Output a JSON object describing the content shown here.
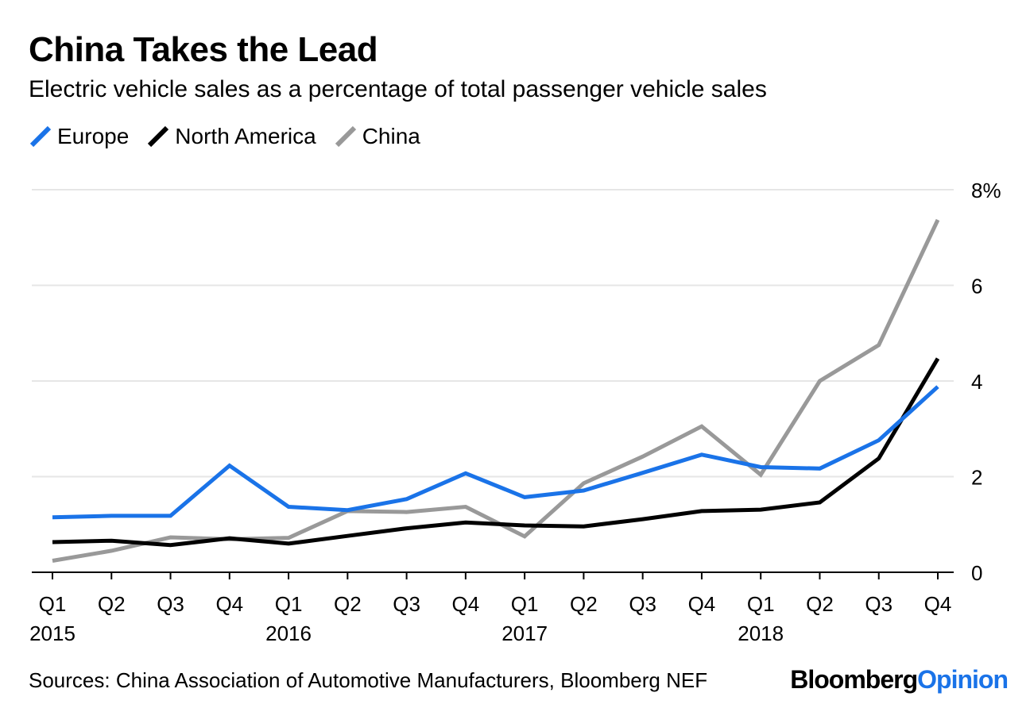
{
  "chart_data": {
    "type": "line",
    "title": "China Takes the Lead",
    "subtitle": "Electric vehicle sales as a percentage of total passenger vehicle sales",
    "categories": [
      "Q1",
      "Q2",
      "Q3",
      "Q4",
      "Q1",
      "Q2",
      "Q3",
      "Q4",
      "Q1",
      "Q2",
      "Q3",
      "Q4",
      "Q1",
      "Q2",
      "Q3",
      "Q4"
    ],
    "year_labels": [
      {
        "index": 0,
        "label": "2015"
      },
      {
        "index": 4,
        "label": "2016"
      },
      {
        "index": 8,
        "label": "2017"
      },
      {
        "index": 12,
        "label": "2018"
      }
    ],
    "ylim": [
      0,
      8
    ],
    "yticks": [
      {
        "value": 0,
        "label": "0"
      },
      {
        "value": 2,
        "label": "2"
      },
      {
        "value": 4,
        "label": "4"
      },
      {
        "value": 6,
        "label": "6"
      },
      {
        "value": 8,
        "label": "8%"
      }
    ],
    "series": [
      {
        "name": "Europe",
        "color": "#1a73e8",
        "values": [
          1.15,
          1.18,
          1.18,
          2.23,
          1.37,
          1.3,
          1.53,
          2.07,
          1.57,
          1.71,
          2.08,
          2.46,
          2.2,
          2.17,
          2.76,
          3.88
        ]
      },
      {
        "name": "North America",
        "color": "#000000",
        "values": [
          0.63,
          0.66,
          0.57,
          0.71,
          0.6,
          0.76,
          0.92,
          1.04,
          0.98,
          0.96,
          1.11,
          1.28,
          1.31,
          1.46,
          2.38,
          4.47
        ]
      },
      {
        "name": "China",
        "color": "#999999",
        "values": [
          0.24,
          0.45,
          0.73,
          0.69,
          0.72,
          1.28,
          1.26,
          1.37,
          0.75,
          1.86,
          2.42,
          3.05,
          2.04,
          4.0,
          4.75,
          7.37
        ]
      }
    ],
    "legend_position": "top-left",
    "source": "Sources: China Association of Automotive Manufacturers, Bloomberg NEF"
  },
  "branding": {
    "part1": "Bloomberg",
    "part2": "Opinion"
  }
}
